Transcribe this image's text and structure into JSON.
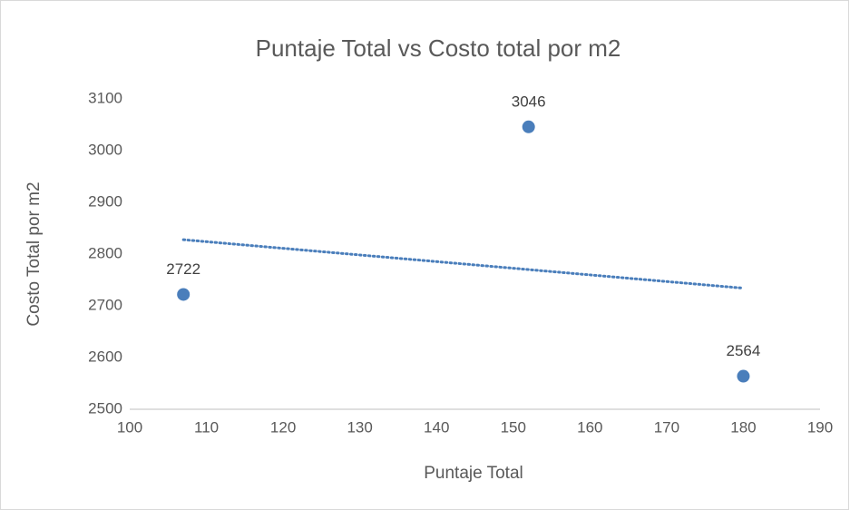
{
  "chart_data": {
    "type": "scatter",
    "title": "Puntaje Total vs Costo total por m2",
    "x_label": "Puntaje Total",
    "y_label": "Costo Total por m2",
    "x": [
      107,
      152,
      180
    ],
    "values": [
      2722,
      3046,
      2564
    ],
    "color": "#4a7ebb",
    "data_labels": true,
    "trendline": "linear",
    "xlim": [
      100,
      190
    ],
    "xticks": [
      100,
      110,
      120,
      130,
      140,
      150,
      160,
      170,
      180,
      190
    ],
    "ylim": [
      2500,
      3100
    ],
    "yticks": [
      2500,
      2600,
      2700,
      2800,
      2900,
      3000,
      3100
    ],
    "grid": false
  }
}
